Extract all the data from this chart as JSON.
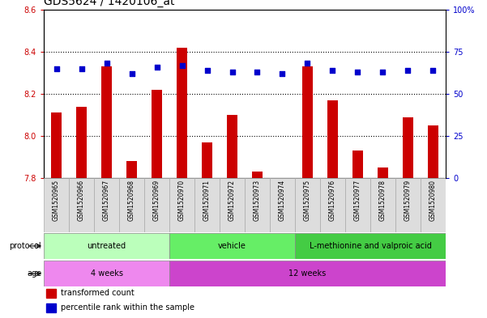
{
  "title": "GDS5624 / 1420106_at",
  "samples": [
    "GSM1520965",
    "GSM1520966",
    "GSM1520967",
    "GSM1520968",
    "GSM1520969",
    "GSM1520970",
    "GSM1520971",
    "GSM1520972",
    "GSM1520973",
    "GSM1520974",
    "GSM1520975",
    "GSM1520976",
    "GSM1520977",
    "GSM1520978",
    "GSM1520979",
    "GSM1520980"
  ],
  "transformed_counts": [
    8.11,
    8.14,
    8.33,
    7.88,
    8.22,
    8.42,
    7.97,
    8.1,
    7.83,
    7.8,
    8.33,
    8.17,
    7.93,
    7.85,
    8.09,
    8.05
  ],
  "percentile_ranks": [
    65,
    65,
    68,
    62,
    66,
    67,
    64,
    63,
    63,
    62,
    68,
    64,
    63,
    63,
    64,
    64
  ],
  "ylim_left": [
    7.8,
    8.6
  ],
  "ylim_right": [
    0,
    100
  ],
  "yticks_left": [
    7.8,
    8.0,
    8.2,
    8.4,
    8.6
  ],
  "yticks_right": [
    0,
    25,
    50,
    75,
    100
  ],
  "ytick_labels_right": [
    "0",
    "25",
    "50",
    "75",
    "100%"
  ],
  "bar_color": "#cc0000",
  "dot_color": "#0000cc",
  "bar_bottom": 7.8,
  "protocol_groups": [
    {
      "label": "untreated",
      "start": 0,
      "end": 4,
      "color": "#bbffbb"
    },
    {
      "label": "vehicle",
      "start": 5,
      "end": 9,
      "color": "#66ee66"
    },
    {
      "label": "L-methionine and valproic acid",
      "start": 10,
      "end": 15,
      "color": "#44cc44"
    }
  ],
  "age_groups": [
    {
      "label": "4 weeks",
      "start": 0,
      "end": 4,
      "color": "#ee88ee"
    },
    {
      "label": "12 weeks",
      "start": 5,
      "end": 15,
      "color": "#cc44cc"
    }
  ],
  "protocol_label": "protocol",
  "age_label": "age",
  "legend_items": [
    {
      "color": "#cc0000",
      "label": "transformed count"
    },
    {
      "color": "#0000cc",
      "label": "percentile rank within the sample"
    }
  ],
  "title_fontsize": 10,
  "tick_fontsize": 7,
  "label_fontsize": 7,
  "grid_lines": [
    8.0,
    8.2,
    8.4
  ],
  "bar_width": 0.4
}
